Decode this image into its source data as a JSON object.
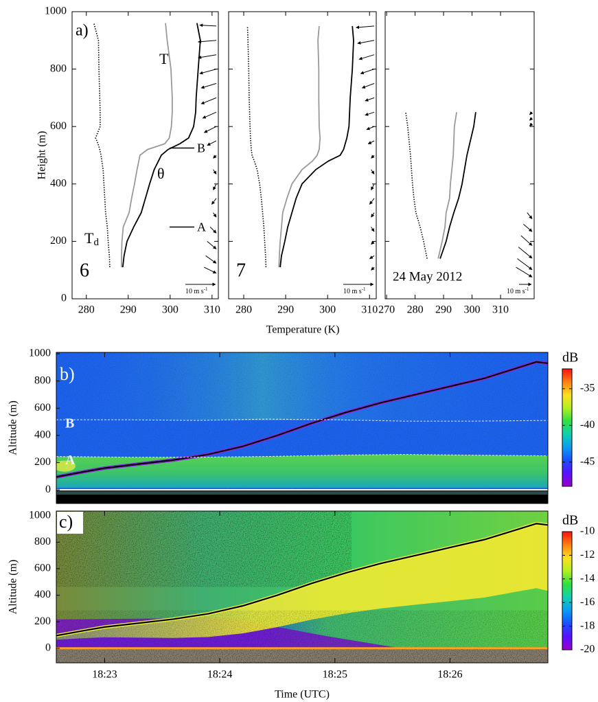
{
  "chart_data": [
    {
      "type": "profile",
      "panel_label": "a)",
      "ylabel": "Height (m)",
      "ylim": [
        0,
        1000
      ],
      "yticks": [
        0,
        200,
        400,
        600,
        800,
        1000
      ],
      "xlim": [
        276.6,
        311.5
      ],
      "xticks": [
        280,
        290,
        300,
        310
      ],
      "heights": [
        110,
        150,
        200,
        250,
        300,
        350,
        400,
        450,
        500,
        520,
        540,
        560,
        600,
        650,
        700,
        800,
        900,
        960
      ],
      "series": [
        {
          "color": "#000000",
          "style": "dotted",
          "values": [
            285.6,
            285.5,
            285.2,
            285.0,
            284.6,
            284.4,
            284.2,
            284.0,
            283.5,
            283.2,
            282.8,
            282.2,
            283.3,
            283.3,
            283.2,
            283.0,
            282.9,
            281.8
          ]
        },
        {
          "color": "#999999",
          "style": "solid",
          "values": [
            288.4,
            288.4,
            288.5,
            288.8,
            290.2,
            290.8,
            291.5,
            292.1,
            292.8,
            294.6,
            298.7,
            299.8,
            300.3,
            300.5,
            300.5,
            300.2,
            299.3,
            298.9
          ]
        },
        {
          "color": "#000000",
          "style": "solid",
          "values": [
            288.7,
            289.0,
            289.7,
            291.3,
            293.1,
            294.1,
            295.1,
            296.2,
            297.9,
            299.5,
            302.3,
            304.4,
            305.6,
            306.1,
            306.2,
            306.7,
            307.2,
            306.4
          ]
        }
      ],
      "annotations": [
        "T",
        "θ"
      ],
      "td_label": {
        "base": "T",
        "sub": "d"
      },
      "markers": [
        {
          "label": "B",
          "height": 525
        },
        {
          "label": "A",
          "height": 250
        }
      ],
      "sounding": "6",
      "wind": {
        "heights": [
          950,
          900,
          850,
          800,
          750,
          700,
          650,
          600,
          550,
          500,
          450,
          400,
          350,
          300,
          250,
          200,
          150,
          110
        ],
        "u": [
          -5.5,
          -6,
          -6,
          -5.5,
          -5,
          -5,
          -4.5,
          -4,
          -3,
          -1,
          1,
          -1,
          -1.5,
          1,
          2,
          3,
          3.5,
          4
        ],
        "v": [
          0.3,
          -0.5,
          -1,
          -1.5,
          -1.5,
          -2,
          -2,
          -2,
          -1.5,
          -1,
          -1.5,
          -2,
          -2,
          -1.5,
          -2,
          -2.5,
          -2.5,
          -2
        ]
      },
      "wind_scale": {
        "value": 10,
        "label": "10 m s",
        "exp": "-1"
      }
    },
    {
      "type": "profile",
      "xlabel": "Temperature (K)",
      "ylim": [
        0,
        1000
      ],
      "yticks": [
        0,
        200,
        400,
        600,
        800,
        1000
      ],
      "xlim": [
        276.4,
        311.6
      ],
      "xticks": [
        280,
        290,
        300,
        310
      ],
      "heights": [
        110,
        150,
        200,
        250,
        300,
        350,
        400,
        450,
        480,
        500,
        520,
        560,
        600,
        700,
        800,
        900,
        950
      ],
      "series": [
        {
          "color": "#000000",
          "style": "dotted",
          "values": [
            285.3,
            285.2,
            285.0,
            284.8,
            284.5,
            284.2,
            283.8,
            283.2,
            282.5,
            282.0,
            281.8,
            281.6,
            281.5,
            281.3,
            281.2,
            281.0,
            280.9
          ]
        },
        {
          "color": "#999999",
          "style": "solid",
          "values": [
            288.4,
            288.5,
            288.7,
            289.0,
            289.3,
            290.3,
            291.5,
            293.9,
            296.4,
            297.5,
            298.0,
            298.2,
            298.0,
            297.9,
            297.9,
            297.7,
            298.0
          ]
        },
        {
          "color": "#000000",
          "style": "solid",
          "values": [
            288.7,
            289.0,
            289.8,
            290.5,
            291.5,
            292.5,
            293.9,
            297.2,
            300.2,
            303.0,
            303.8,
            304.6,
            305.1,
            305.4,
            305.9,
            306.2,
            305.9
          ]
        }
      ],
      "sounding": "7",
      "wind": {
        "heights": [
          950,
          900,
          850,
          800,
          750,
          700,
          650,
          600,
          550,
          500,
          450,
          400,
          350,
          300,
          250,
          200,
          150,
          110
        ],
        "u": [
          -6,
          -5.5,
          -5,
          -4.5,
          -4,
          -3,
          -3,
          -2.5,
          -2,
          -1,
          1,
          -1,
          -1.5,
          -1,
          1,
          -1,
          -1.5,
          -1
        ],
        "v": [
          -0.5,
          -1,
          -1.5,
          -1.5,
          -1.5,
          -1,
          -1,
          -1,
          -1,
          -1,
          -1.5,
          -2,
          -2,
          -1.5,
          -1.5,
          -1,
          -1,
          -1
        ]
      },
      "wind_scale": {
        "value": 10,
        "label": "10 m s",
        "exp": "-1"
      }
    },
    {
      "type": "profile",
      "ylim": [
        0,
        1000
      ],
      "yticks": [
        0,
        200,
        400,
        600,
        800,
        1000
      ],
      "xlim": [
        269.5,
        321.8
      ],
      "xticks": [
        270,
        280,
        290,
        300,
        310
      ],
      "heights": [
        140,
        200,
        250,
        300,
        350,
        400,
        500,
        600,
        650
      ],
      "series": [
        {
          "color": "#000000",
          "style": "dotted",
          "values": [
            284.2,
            283.0,
            281.8,
            280.3,
            279.6,
            279.1,
            278.4,
            277.4,
            276.7
          ]
        },
        {
          "color": "#999999",
          "style": "solid",
          "values": [
            288.1,
            289.5,
            290.5,
            290.9,
            292.1,
            292.4,
            293.4,
            293.8,
            294.6
          ]
        },
        {
          "color": "#000000",
          "style": "solid",
          "values": [
            288.8,
            290.9,
            292.1,
            293.6,
            295.3,
            296.5,
            298.2,
            300.6,
            301.3
          ]
        }
      ],
      "date": "24 May 2012",
      "wind": {
        "heights": [
          650,
          630,
          610,
          300,
          260,
          220,
          180,
          140,
          110
        ],
        "u": [
          -2,
          -2,
          -2,
          4,
          7,
          9,
          11,
          12,
          13
        ],
        "v": [
          -2,
          -2,
          -2,
          -5,
          -6,
          -8,
          -9,
          -9,
          -8
        ]
      },
      "wind_scale": {
        "value": 10,
        "label": "10 m s",
        "exp": "-1"
      }
    },
    {
      "type": "heatmap",
      "panel_label": "b)",
      "ylabel": "Altitude (m)",
      "xlim": [
        22.58,
        26.85
      ],
      "xticks": [
        23,
        24,
        25,
        26
      ],
      "ylim": [
        -100,
        1010
      ],
      "yticks": [
        0,
        200,
        400,
        600,
        800,
        1000
      ],
      "colorbar": {
        "label": "dB",
        "clim": [
          -48.3,
          -32.3
        ],
        "ticks": [
          -45,
          -40,
          -35
        ]
      },
      "colormap": [
        "#9900cc",
        "#5a10ff",
        "#1a50ff",
        "#0a9cf0",
        "#10d0b0",
        "#30e040",
        "#b0f020",
        "#ffe020",
        "#ff8010",
        "#ff1010"
      ],
      "bl_top": {
        "color": "#000000",
        "x": [
          22.58,
          22.8,
          23.0,
          23.3,
          23.6,
          23.9,
          24.2,
          24.5,
          24.8,
          25.1,
          25.4,
          25.7,
          26.0,
          26.3,
          26.6,
          26.75,
          26.85
        ],
        "values": [
          95,
          130,
          160,
          190,
          220,
          260,
          320,
          400,
          490,
          570,
          640,
          700,
          760,
          820,
          900,
          940,
          930
        ]
      },
      "layers": [
        {
          "label": "B",
          "x": [
            22.58,
            23.2,
            23.8,
            24.4,
            25.0,
            25.6,
            26.2,
            26.85
          ],
          "values": [
            515,
            515,
            510,
            520,
            515,
            505,
            505,
            510
          ]
        },
        {
          "label": "A",
          "x": [
            22.58,
            23.2,
            23.8,
            24.4,
            25.0,
            25.6,
            26.2,
            26.85
          ],
          "values": [
            245,
            240,
            240,
            245,
            255,
            260,
            255,
            250
          ]
        }
      ]
    },
    {
      "type": "heatmap",
      "panel_label": "c)",
      "ylabel": "Altitude (m)",
      "xlabel": "Time (UTC)",
      "xlim": [
        22.58,
        26.85
      ],
      "xticks": [
        {
          "value": 23,
          "label": "18:23"
        },
        {
          "value": 24,
          "label": "18:24"
        },
        {
          "value": 25,
          "label": "18:25"
        },
        {
          "value": 26,
          "label": "18:26"
        }
      ],
      "ylim": [
        -110,
        1035
      ],
      "yticks": [
        0,
        200,
        400,
        600,
        800,
        1000
      ],
      "colorbar": {
        "label": "dB",
        "clim": [
          -20,
          -10
        ],
        "ticks": [
          -20,
          -18,
          -16,
          -14,
          -12,
          -10
        ]
      },
      "colormap": [
        "#9900cc",
        "#5a10ff",
        "#1a50ff",
        "#0a9cf0",
        "#10d0b0",
        "#30e040",
        "#b0f020",
        "#ffe020",
        "#ff8010",
        "#ff1010"
      ],
      "bl_top": {
        "color": "#000000",
        "x": [
          22.58,
          22.8,
          23.0,
          23.3,
          23.6,
          23.9,
          24.2,
          24.5,
          24.8,
          25.1,
          25.4,
          25.7,
          26.0,
          26.3,
          26.6,
          26.75,
          26.85
        ],
        "values": [
          95,
          130,
          160,
          190,
          220,
          260,
          320,
          400,
          490,
          570,
          640,
          700,
          760,
          820,
          900,
          940,
          930
        ]
      }
    }
  ]
}
